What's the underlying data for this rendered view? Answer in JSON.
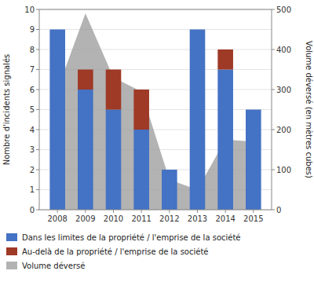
{
  "chart_data": {
    "type": "bar",
    "stacked": true,
    "categories": [
      "2008",
      "2009",
      "2010",
      "2011",
      "2012",
      "2013",
      "2014",
      "2015"
    ],
    "series": [
      {
        "name": "Dans les limites de la propriété / l'emprise de la société",
        "color": "#4472C4",
        "values": [
          9,
          6,
          5,
          4,
          2,
          9,
          7,
          5
        ]
      },
      {
        "name": "Au-delà de la propriété / l'emprise de la société",
        "color": "#9E3A26",
        "values": [
          0,
          1,
          2,
          2,
          0,
          0,
          1,
          0
        ]
      },
      {
        "name": "Volume déversé",
        "color": "#999999",
        "type": "area",
        "axis": "y2",
        "values": [
          300,
          490,
          330,
          295,
          75,
          50,
          175,
          170
        ]
      }
    ],
    "ylabel": "Nombre d'incidents signalés",
    "y2label": "Volume déversé (en mètres cubes)",
    "ylim": [
      0,
      10
    ],
    "yticks": [
      0,
      1,
      2,
      3,
      4,
      5,
      6,
      7,
      8,
      9,
      10
    ],
    "y2lim": [
      0,
      500
    ],
    "y2ticks": [
      0,
      100,
      200,
      300,
      400,
      500
    ],
    "grid": true,
    "legend": "bottom"
  }
}
